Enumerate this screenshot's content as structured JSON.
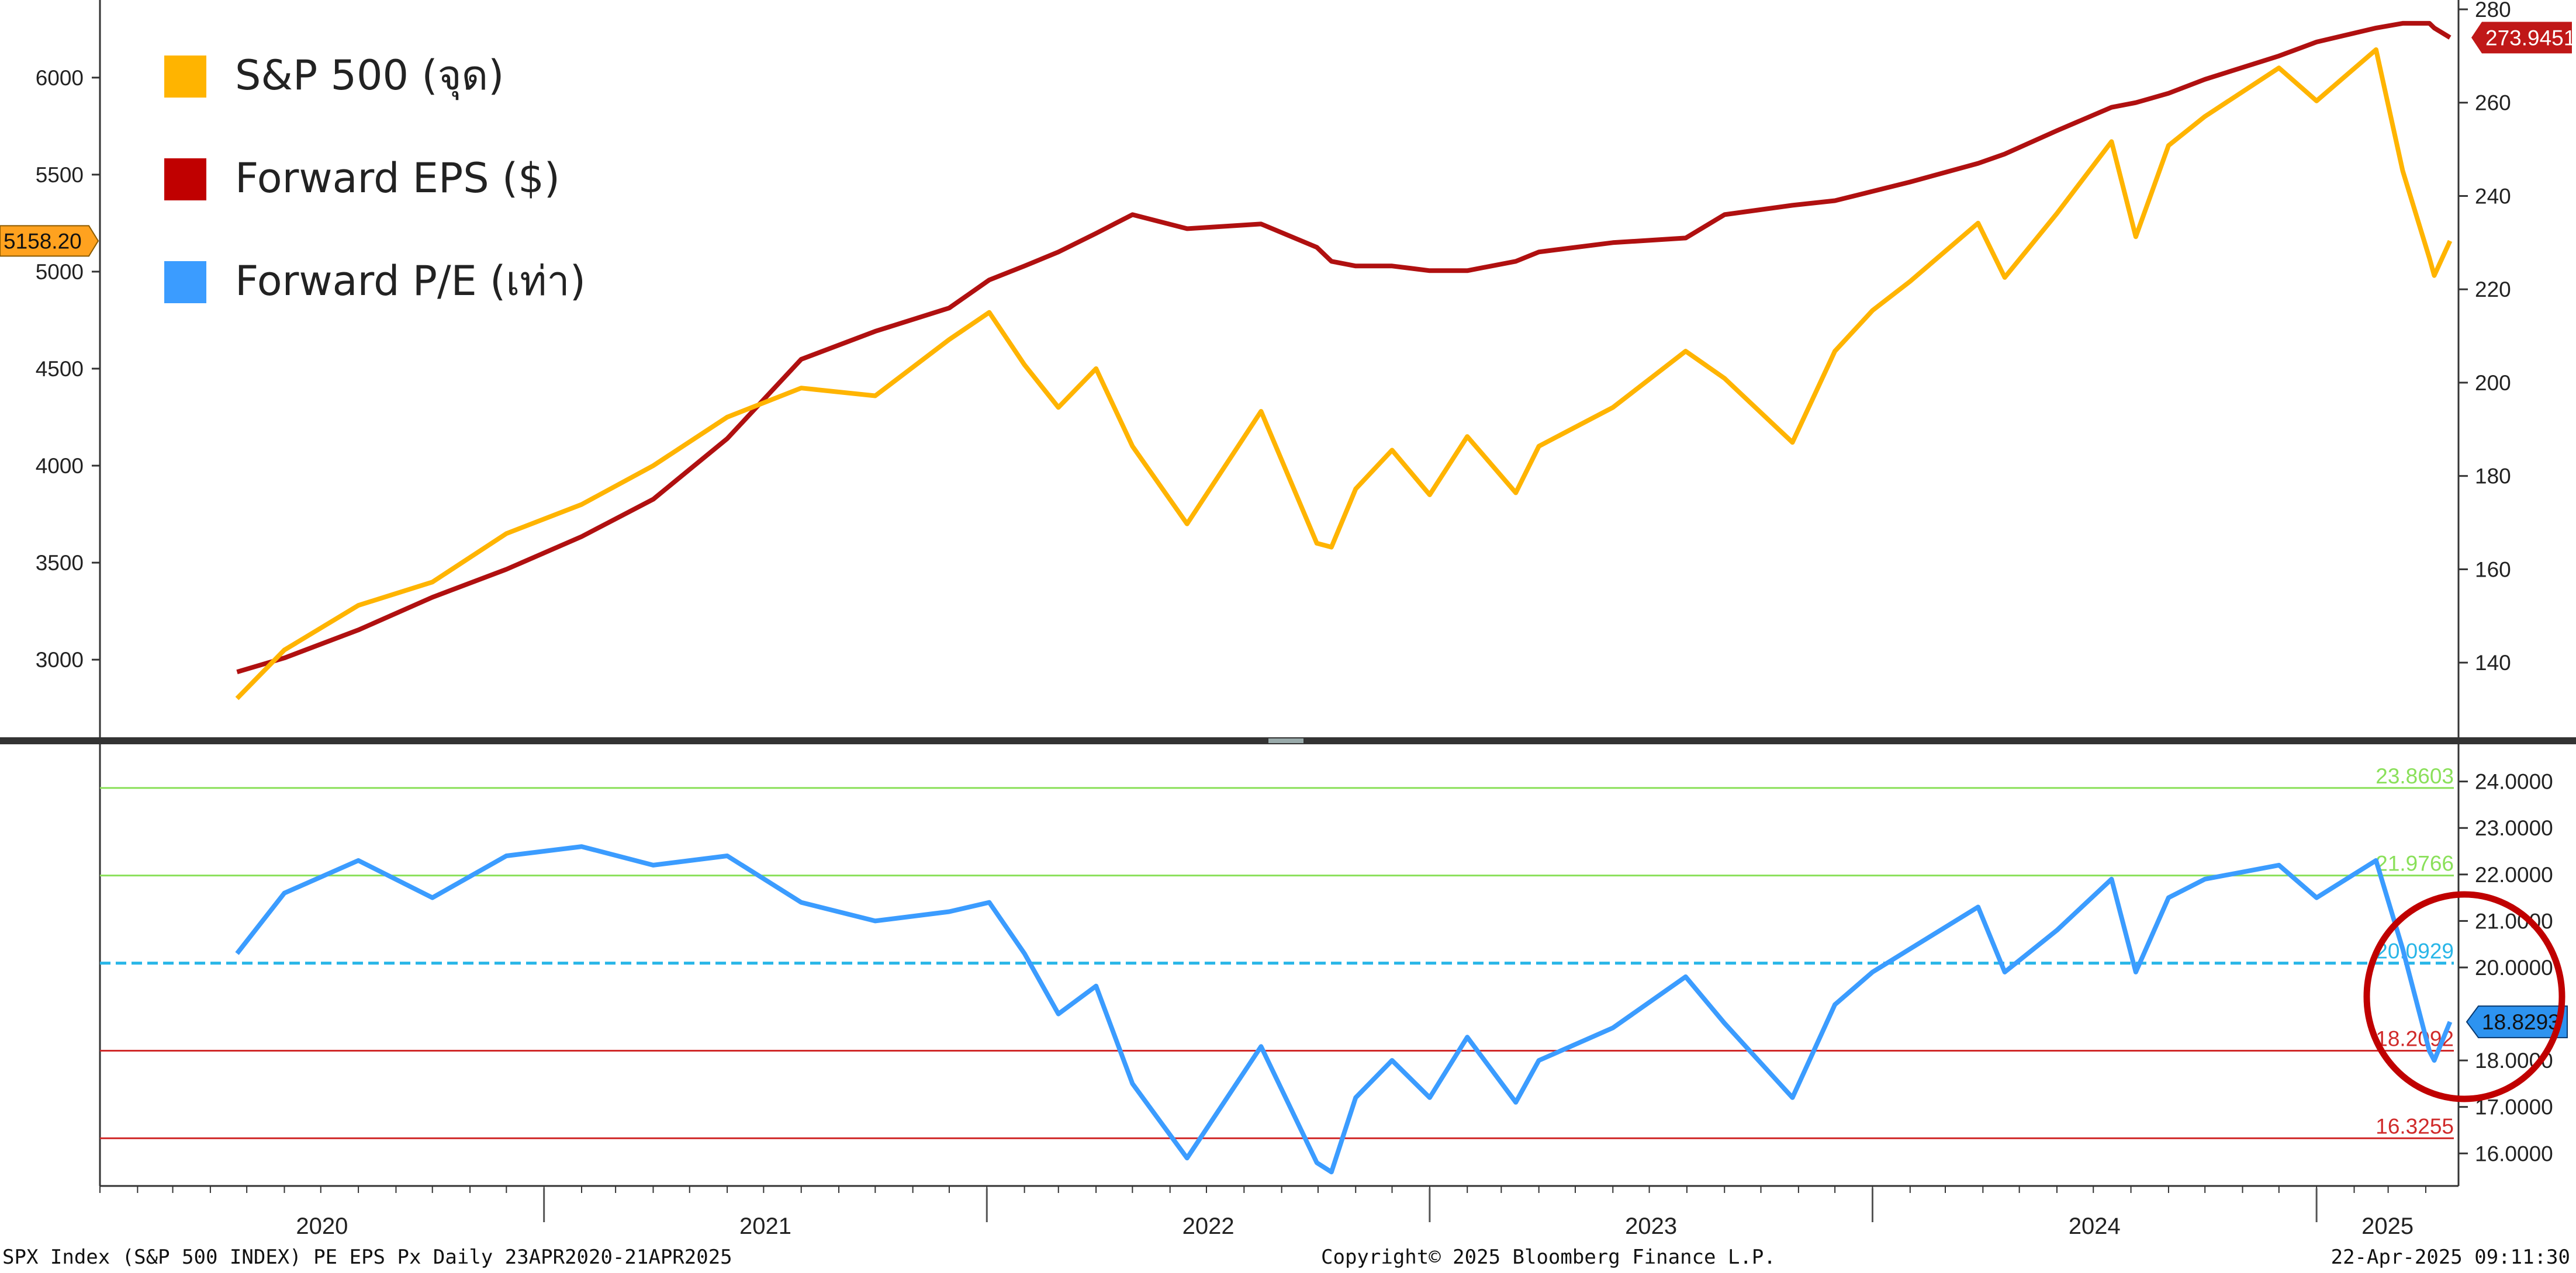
{
  "chart_data": [
    {
      "type": "line",
      "panel": "top",
      "legend": [
        {
          "label": "S&P 500 (จุด)",
          "color": "#FFB400"
        },
        {
          "label": "Forward EPS ($)",
          "color": "#C00000"
        },
        {
          "label": "Forward P/E (เท่า)",
          "color": "#3B9CFF"
        }
      ],
      "left_axis": {
        "ylim": [
          2600,
          6400
        ],
        "ticks": [
          "6000",
          "5500",
          "5000",
          "4500",
          "4000",
          "3500",
          "3000"
        ]
      },
      "right_axis": {
        "ylim": [
          124,
          282
        ],
        "ticks": [
          "280",
          "260",
          "240",
          "220",
          "200",
          "180",
          "160",
          "140"
        ]
      },
      "x": [
        "2020-04-23",
        "2020-06-01",
        "2020-08-01",
        "2020-10-01",
        "2020-12-01",
        "2021-02-01",
        "2021-04-01",
        "2021-06-01",
        "2021-08-01",
        "2021-10-01",
        "2021-12-01",
        "2022-01-03",
        "2022-02-01",
        "2022-03-01",
        "2022-04-01",
        "2022-05-01",
        "2022-06-15",
        "2022-08-15",
        "2022-09-30",
        "2022-10-12",
        "2022-11-01",
        "2022-12-01",
        "2023-01-01",
        "2023-02-01",
        "2023-03-13",
        "2023-04-01",
        "2023-06-01",
        "2023-07-31",
        "2023-09-01",
        "2023-10-27",
        "2023-12-01",
        "2024-01-01",
        "2024-02-01",
        "2024-03-28",
        "2024-04-19",
        "2024-06-01",
        "2024-07-16",
        "2024-08-05",
        "2024-09-01",
        "2024-10-01",
        "2024-12-01",
        "2025-01-01",
        "2025-02-19",
        "2025-03-13",
        "2025-04-04",
        "2025-04-08",
        "2025-04-21"
      ],
      "series": [
        {
          "name": "S&P 500 (จุด)",
          "axis": "left",
          "color": "#FFB400",
          "values": [
            2800,
            3050,
            3280,
            3400,
            3650,
            3800,
            4000,
            4250,
            4400,
            4360,
            4650,
            4790,
            4520,
            4300,
            4500,
            4100,
            3700,
            4280,
            3600,
            3580,
            3880,
            4080,
            3850,
            4150,
            3860,
            4100,
            4300,
            4590,
            4450,
            4120,
            4590,
            4800,
            4950,
            5250,
            4970,
            5300,
            5670,
            5180,
            5650,
            5800,
            6050,
            5880,
            6144,
            5520,
            5070,
            4980,
            5158.2
          ]
        },
        {
          "name": "Forward EPS ($)",
          "axis": "right",
          "color": "#B01010",
          "values": [
            138,
            141,
            147,
            154,
            160,
            167,
            175,
            188,
            205,
            211,
            216,
            222,
            225,
            228,
            232,
            236,
            233,
            234,
            229,
            226,
            225,
            225,
            224,
            224,
            226,
            228,
            230,
            231,
            236,
            238,
            239,
            241,
            243,
            247,
            249,
            254,
            259,
            260,
            262,
            265,
            270,
            273,
            276,
            277,
            277,
            276,
            273.9451
          ]
        },
        {
          "name": "Forward P/E (เท่า)",
          "axis": "pe",
          "color": "#3B9CFF",
          "values": [
            20.3,
            21.6,
            22.3,
            21.5,
            22.4,
            22.6,
            22.2,
            22.4,
            21.4,
            21.0,
            21.2,
            21.4,
            20.3,
            19.0,
            19.6,
            17.5,
            15.9,
            18.3,
            15.8,
            15.6,
            17.2,
            18.0,
            17.2,
            18.5,
            17.1,
            18.0,
            18.7,
            19.8,
            18.8,
            17.2,
            19.2,
            19.9,
            20.4,
            21.3,
            19.9,
            20.8,
            21.9,
            19.9,
            21.5,
            21.9,
            22.2,
            21.5,
            22.3,
            20.4,
            18.2,
            18.0,
            18.8293
          ]
        }
      ],
      "last_value_tags": {
        "left": "5158.20",
        "right": "273.9451"
      }
    },
    {
      "type": "line",
      "panel": "bottom",
      "series_ref": "Forward P/E (เท่า)",
      "ylim": [
        15.3,
        24.8
      ],
      "ticks": [
        "24.0000",
        "23.0000",
        "22.0000",
        "21.0000",
        "20.0000",
        "18.0000",
        "17.0000",
        "16.0000"
      ],
      "reference_lines": [
        {
          "label": "23.8603",
          "value": 23.8603,
          "color": "#8AE05A",
          "style": "solid"
        },
        {
          "label": "21.9766",
          "value": 21.9766,
          "color": "#8AE05A",
          "style": "solid"
        },
        {
          "label": "20.0929",
          "value": 20.0929,
          "color": "#29B6E8",
          "style": "dashed"
        },
        {
          "label": "18.2092",
          "value": 18.2092,
          "color": "#D02A2A",
          "style": "solid"
        },
        {
          "label": "16.3255",
          "value": 16.3255,
          "color": "#D02A2A",
          "style": "solid"
        }
      ],
      "last_value_tag": "18.8293",
      "annotation": "red-circle-around-latest"
    }
  ],
  "x_axis": {
    "years": [
      "2020",
      "2021",
      "2022",
      "2023",
      "2024",
      "2025"
    ]
  },
  "footer": {
    "left": "SPX Index (S&P 500 INDEX) PE EPS Px  Daily 23APR2020-21APR2025",
    "center": "Copyright© 2025 Bloomberg Finance L.P.",
    "right": "22-Apr-2025 09:11:30"
  }
}
